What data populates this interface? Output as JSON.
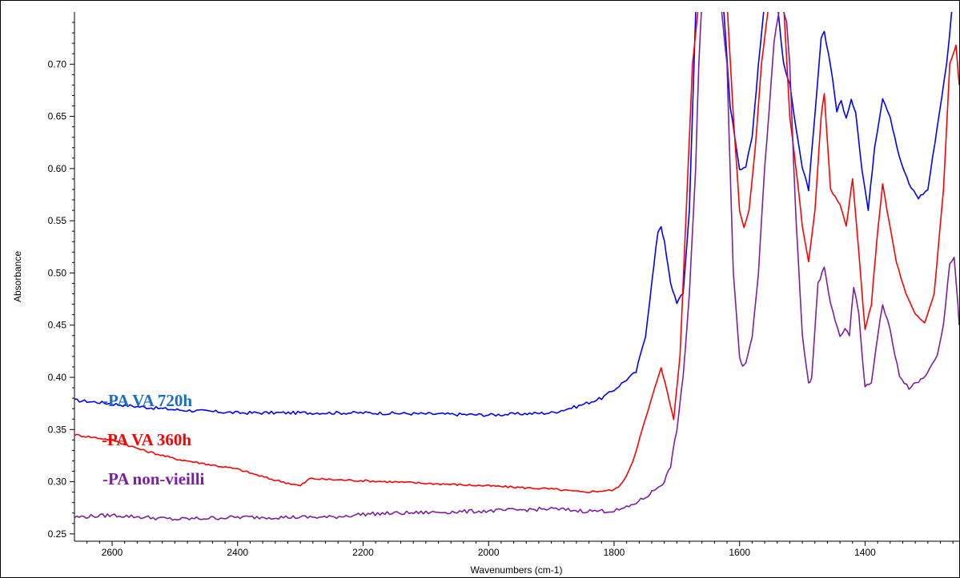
{
  "chart_data": {
    "type": "line",
    "title": "",
    "xlabel": "Wavenumbers (cm-1)",
    "ylabel": "Absorbance",
    "xlim": [
      2660,
      1250
    ],
    "ylim": [
      0.243,
      0.75
    ],
    "x_reversed": true,
    "x_ticks": [
      2600,
      2400,
      2200,
      2000,
      1800,
      1600,
      1400
    ],
    "x_tick_labels": [
      "2600",
      "2400",
      "2200",
      "2000",
      "1800",
      "1600",
      "1400"
    ],
    "y_ticks": [
      0.25,
      0.3,
      0.35,
      0.4,
      0.45,
      0.5,
      0.55,
      0.6,
      0.65,
      0.7
    ],
    "y_tick_labels": [
      "0.25",
      "0.30",
      "0.35",
      "0.40",
      "0.45",
      "0.50",
      "0.55",
      "0.60",
      "0.65",
      "0.70"
    ],
    "grid": false,
    "legend_placement": "left, inline text",
    "series": [
      {
        "name": "-PA VA 720h",
        "color": "#0000ff",
        "legend_color": "#1a6fc4",
        "noise": 0.0015,
        "x": [
          2660,
          2620,
          2560,
          2500,
          2400,
          2200,
          2000,
          1900,
          1860,
          1820,
          1800,
          1780,
          1765,
          1750,
          1740,
          1730,
          1725,
          1720,
          1710,
          1700,
          1690,
          1680,
          1670,
          1665,
          1650,
          1640,
          1625,
          1615,
          1600,
          1590,
          1580,
          1570,
          1560,
          1550,
          1540,
          1530,
          1520,
          1510,
          1500,
          1490,
          1480,
          1470,
          1465,
          1455,
          1445,
          1438,
          1430,
          1422,
          1415,
          1405,
          1395,
          1385,
          1372,
          1360,
          1345,
          1330,
          1315,
          1300,
          1285,
          1270,
          1262,
          1255,
          1250
        ],
        "y": [
          0.378,
          0.376,
          0.372,
          0.369,
          0.366,
          0.366,
          0.364,
          0.366,
          0.372,
          0.38,
          0.388,
          0.398,
          0.405,
          0.44,
          0.49,
          0.54,
          0.545,
          0.53,
          0.49,
          0.472,
          0.48,
          0.56,
          0.75,
          0.76,
          0.77,
          0.76,
          0.75,
          0.66,
          0.6,
          0.602,
          0.63,
          0.7,
          0.76,
          0.77,
          0.76,
          0.7,
          0.68,
          0.64,
          0.6,
          0.58,
          0.65,
          0.725,
          0.73,
          0.7,
          0.655,
          0.665,
          0.648,
          0.665,
          0.655,
          0.6,
          0.56,
          0.62,
          0.668,
          0.65,
          0.61,
          0.585,
          0.572,
          0.58,
          0.64,
          0.7,
          0.75,
          0.76,
          0.76
        ]
      },
      {
        "name": "-PA VA 360h",
        "color": "#ff0000",
        "legend_color": "#ff0000",
        "noise": 0.001,
        "x": [
          2660,
          2600,
          2550,
          2500,
          2400,
          2350,
          2300,
          2285,
          2250,
          2200,
          2000,
          1900,
          1850,
          1800,
          1785,
          1770,
          1755,
          1745,
          1735,
          1725,
          1715,
          1705,
          1695,
          1685,
          1675,
          1665,
          1655,
          1640,
          1630,
          1620,
          1610,
          1600,
          1593,
          1585,
          1575,
          1565,
          1555,
          1540,
          1530,
          1520,
          1510,
          1500,
          1490,
          1480,
          1470,
          1465,
          1455,
          1440,
          1430,
          1420,
          1410,
          1400,
          1390,
          1380,
          1372,
          1365,
          1350,
          1335,
          1320,
          1305,
          1290,
          1275,
          1265,
          1255,
          1250
        ],
        "y": [
          0.345,
          0.34,
          0.33,
          0.322,
          0.312,
          0.303,
          0.296,
          0.303,
          0.302,
          0.301,
          0.296,
          0.293,
          0.29,
          0.292,
          0.3,
          0.32,
          0.35,
          0.37,
          0.39,
          0.41,
          0.385,
          0.36,
          0.42,
          0.56,
          0.7,
          0.76,
          0.77,
          0.77,
          0.77,
          0.76,
          0.65,
          0.56,
          0.543,
          0.56,
          0.62,
          0.7,
          0.75,
          0.77,
          0.76,
          0.65,
          0.6,
          0.545,
          0.51,
          0.56,
          0.65,
          0.672,
          0.58,
          0.565,
          0.545,
          0.59,
          0.52,
          0.445,
          0.47,
          0.54,
          0.585,
          0.56,
          0.51,
          0.48,
          0.46,
          0.452,
          0.48,
          0.58,
          0.7,
          0.718,
          0.68
        ]
      },
      {
        "name": "-PA non-vieilli",
        "color": "#7b1fa2",
        "legend_color": "#7b1fa2",
        "noise": 0.0018,
        "x": [
          2660,
          2600,
          2500,
          2400,
          2300,
          2250,
          2200,
          2000,
          1900,
          1850,
          1800,
          1780,
          1765,
          1750,
          1740,
          1730,
          1720,
          1710,
          1700,
          1690,
          1680,
          1670,
          1665,
          1660,
          1650,
          1640,
          1630,
          1620,
          1610,
          1600,
          1595,
          1590,
          1580,
          1570,
          1560,
          1545,
          1535,
          1525,
          1520,
          1510,
          1500,
          1490,
          1485,
          1475,
          1465,
          1455,
          1440,
          1432,
          1425,
          1418,
          1410,
          1400,
          1390,
          1380,
          1372,
          1360,
          1345,
          1330,
          1315,
          1300,
          1285,
          1275,
          1265,
          1258,
          1252,
          1250
        ],
        "y": [
          0.266,
          0.268,
          0.264,
          0.266,
          0.266,
          0.266,
          0.269,
          0.272,
          0.274,
          0.272,
          0.272,
          0.275,
          0.28,
          0.285,
          0.29,
          0.295,
          0.3,
          0.315,
          0.35,
          0.4,
          0.48,
          0.6,
          0.7,
          0.76,
          0.77,
          0.77,
          0.76,
          0.7,
          0.5,
          0.42,
          0.41,
          0.415,
          0.44,
          0.5,
          0.6,
          0.72,
          0.76,
          0.74,
          0.7,
          0.55,
          0.44,
          0.393,
          0.4,
          0.49,
          0.505,
          0.47,
          0.44,
          0.445,
          0.44,
          0.487,
          0.46,
          0.39,
          0.395,
          0.44,
          0.47,
          0.445,
          0.4,
          0.39,
          0.395,
          0.405,
          0.42,
          0.45,
          0.51,
          0.515,
          0.47,
          0.45
        ]
      }
    ]
  }
}
